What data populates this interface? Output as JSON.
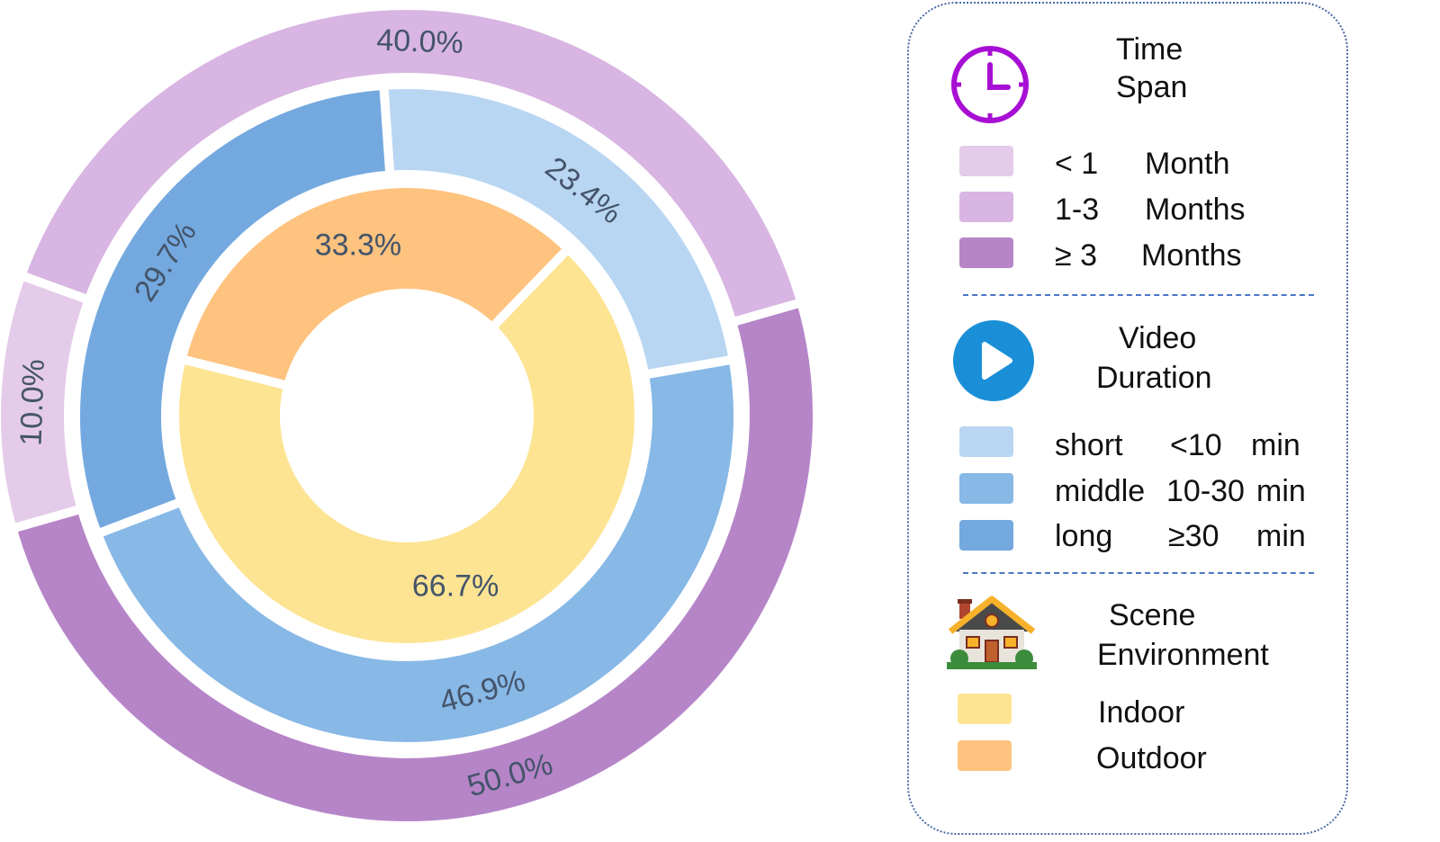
{
  "chart_data": {
    "type": "pie",
    "rings": [
      {
        "name": "Time Span",
        "slices": [
          {
            "label": "< 1 Month",
            "value": 10.0,
            "display": "10.0%",
            "color": "#e4cbe9"
          },
          {
            "label": "1-3 Months",
            "value": 40.0,
            "display": "40.0%",
            "color": "#d8b5e2"
          },
          {
            "label": "≥ 3 Months",
            "value": 50.0,
            "display": "50.0%",
            "color": "#b685c8"
          }
        ]
      },
      {
        "name": "Video Duration",
        "slices": [
          {
            "label": "short <10 min",
            "value": 23.4,
            "display": "23.4%",
            "color": "#b8d6f2"
          },
          {
            "label": "middle 10-30 min",
            "value": 46.9,
            "display": "46.9%",
            "color": "#87b8e6"
          },
          {
            "label": "long ≥30 min",
            "value": 29.7,
            "display": "29.7%",
            "color": "#74a9df"
          }
        ]
      },
      {
        "name": "Scene Environment",
        "slices": [
          {
            "label": "Indoor",
            "value": 66.7,
            "display": "66.7%",
            "color": "#fde493"
          },
          {
            "label": "Outdoor",
            "value": 33.3,
            "display": "33.3%",
            "color": "#fdc37f"
          }
        ]
      }
    ]
  },
  "legend": {
    "time_span": {
      "title_line1": "Time",
      "title_line2": "Span",
      "icon": "clock-icon",
      "icon_color": "#a80fd4",
      "items": [
        {
          "col1": "< 1",
          "col2": "Month",
          "color": "#e4cbe9"
        },
        {
          "col1": "1-3",
          "col2": "Months",
          "color": "#d8b5e2"
        },
        {
          "col1": "≥ 3",
          "col2": "Months",
          "color": "#b685c8"
        }
      ]
    },
    "video_duration": {
      "title_line1": "Video",
      "title_line2": "Duration",
      "icon": "play-icon",
      "icon_color": "#1a8fd8",
      "items": [
        {
          "col1": "short",
          "col2": "<10",
          "col3": "min",
          "color": "#b8d6f2"
        },
        {
          "col1": "middle",
          "col2": "10-30",
          "col3": "min",
          "color": "#87b8e6"
        },
        {
          "col1": "long",
          "col2": "≥30",
          "col3": "min",
          "color": "#74a9df"
        }
      ]
    },
    "scene_environment": {
      "title_line1": "Scene",
      "title_line2": "Environment",
      "icon": "house-icon",
      "items": [
        {
          "label": "Indoor",
          "color": "#fde493"
        },
        {
          "label": "Outdoor",
          "color": "#fdc37f"
        }
      ]
    }
  }
}
